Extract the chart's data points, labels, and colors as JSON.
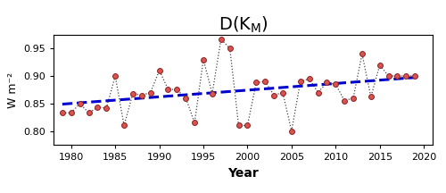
{
  "years": [
    1979,
    1980,
    1981,
    1982,
    1983,
    1984,
    1985,
    1986,
    1987,
    1988,
    1989,
    1990,
    1991,
    1992,
    1993,
    1994,
    1995,
    1996,
    1997,
    1998,
    1999,
    2000,
    2001,
    2002,
    2003,
    2004,
    2005,
    2006,
    2007,
    2008,
    2009,
    2010,
    2011,
    2012,
    2013,
    2014,
    2015,
    2016,
    2017,
    2018,
    2019
  ],
  "values": [
    0.833,
    0.833,
    0.85,
    0.833,
    0.843,
    0.842,
    0.9,
    0.81,
    0.868,
    0.865,
    0.87,
    0.91,
    0.876,
    0.875,
    0.86,
    0.815,
    0.93,
    0.868,
    0.967,
    0.95,
    0.81,
    0.81,
    0.888,
    0.89,
    0.865,
    0.87,
    0.8,
    0.89,
    0.895,
    0.87,
    0.888,
    0.885,
    0.855,
    0.86,
    0.94,
    0.862,
    0.92,
    0.9,
    0.9,
    0.9,
    0.9
  ],
  "ylabel": "W m⁻²",
  "xlabel": "Year",
  "ylim": [
    0.775,
    0.975
  ],
  "yticks": [
    0.8,
    0.85,
    0.9,
    0.95
  ],
  "xlim": [
    1978,
    2021
  ],
  "xticks": [
    1980,
    1985,
    1990,
    1995,
    2000,
    2005,
    2010,
    2015,
    2020
  ],
  "dot_color": "#d9534f",
  "dot_edge_color": "#8b2020",
  "line_color": "#444444",
  "trend_color": "#0000cc",
  "background_color": "white",
  "title_fontsize": 14,
  "xlabel_fontsize": 10,
  "ylabel_fontsize": 9,
  "tick_labelsize": 8
}
